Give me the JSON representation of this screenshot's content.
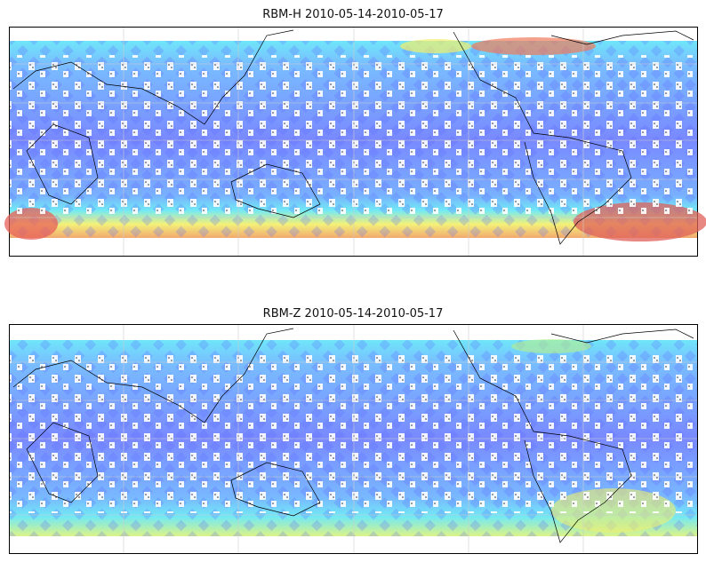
{
  "panels": [
    {
      "title": "RBM-H 2010-05-14-2010-05-17"
    },
    {
      "title": "RBM-Z 2010-05-14-2010-05-17"
    }
  ]
}
